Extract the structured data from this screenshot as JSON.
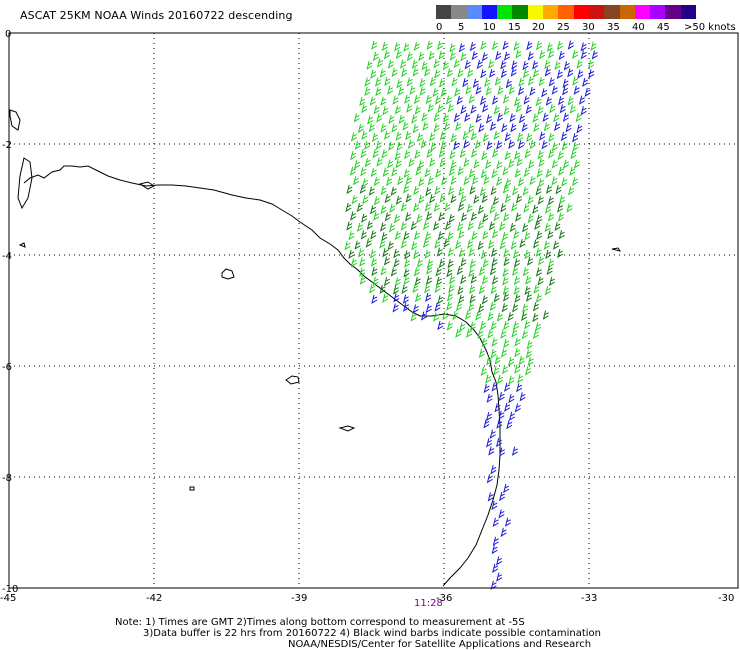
{
  "title": "ASCAT 25KM NOAA Winds 20160722 descending",
  "colorbar": {
    "labels": [
      "0",
      "5",
      "10",
      "15",
      "20",
      "25",
      "30",
      "35",
      "40",
      "45",
      ">50 knots"
    ],
    "colors": [
      "#444444",
      "#888888",
      "#5a8cff",
      "#1414ff",
      "#00e400",
      "#008800",
      "#f8f800",
      "#ffaa00",
      "#ff6000",
      "#ff0000",
      "#cc1111",
      "#884422",
      "#cc6600",
      "#ff00ff",
      "#aa00ff",
      "#660088",
      "#220088"
    ]
  },
  "latitudes": [
    "0",
    "-2",
    "-4",
    "-6",
    "-8",
    "-10"
  ],
  "longitudes": [
    "-45",
    "-42",
    "-39",
    "-36",
    "-33",
    "-30"
  ],
  "time_label": "11:28",
  "notes": {
    "line1": "Note: 1) Times are GMT 2)Times along bottom correspond to measurement at -5S",
    "line2": "3)Data buffer is 22 hrs from 20160722 4) Black wind barbs indicate possible contamination",
    "line3": "NOAA/NESDIS/Center for Satellite Applications and Research"
  },
  "wind_colors": {
    "blue": "#1a1ad8",
    "light_green": "#22d022",
    "dark_green": "#117711",
    "yellow": "#e8e800"
  }
}
